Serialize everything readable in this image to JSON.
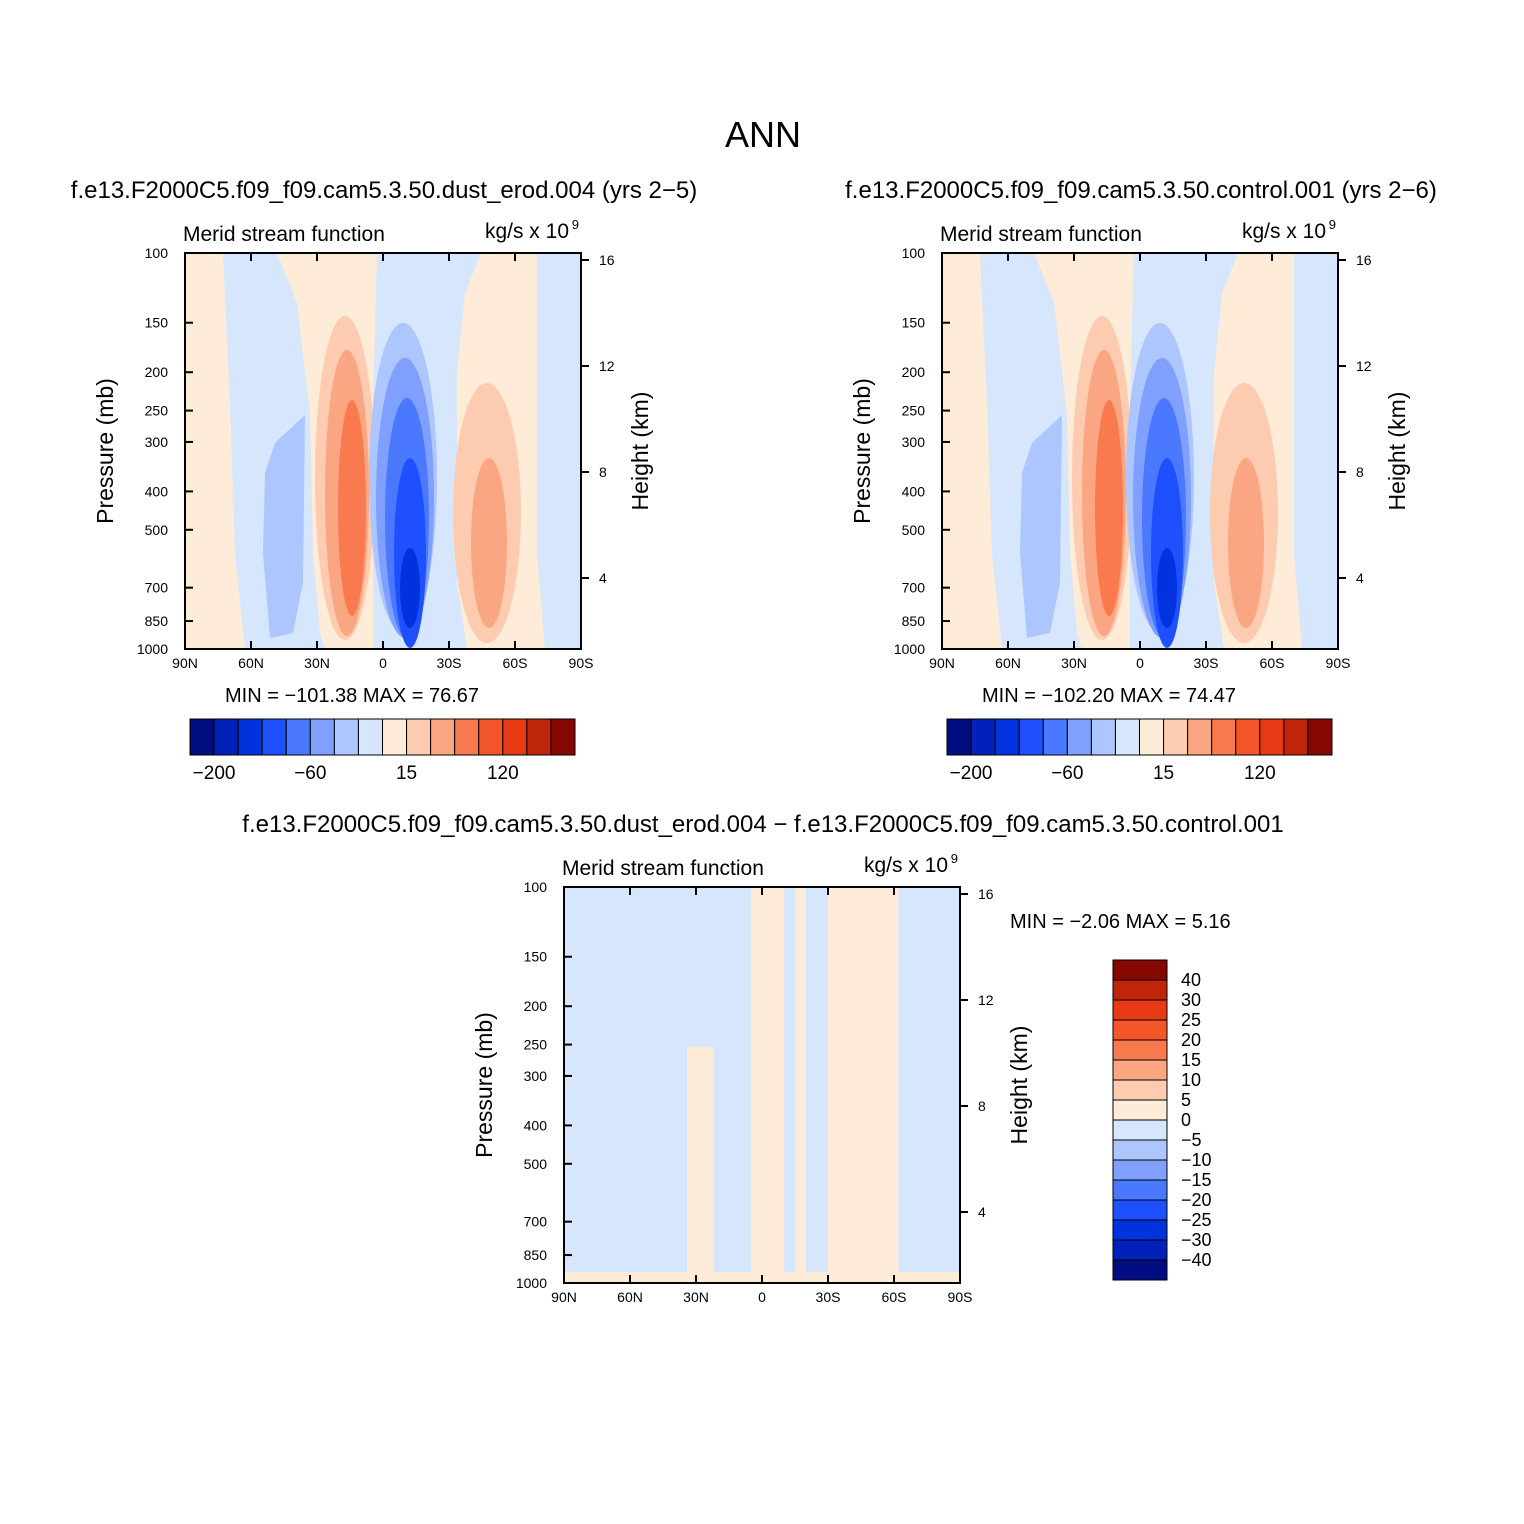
{
  "title": "ANN",
  "colors": {
    "neg": [
      "#000d80",
      "#0022bb",
      "#0033dd",
      "#1e50ff",
      "#4a78ff",
      "#7fa0ff",
      "#adc6ff",
      "#d6e6fd"
    ],
    "pos": [
      "#feebd8",
      "#fdccb0",
      "#fba682",
      "#f97a4f",
      "#f4562a",
      "#e63a14",
      "#c0250a",
      "#860800"
    ]
  },
  "chart_data": [
    {
      "type": "heatmap",
      "panel_title": "f.e13.F2000C5.f09_f09.cam5.3.50.dust_erod.004 (yrs 2−5)",
      "title_left": "Merid stream function",
      "title_right": "kg/s x 10",
      "title_right_sup": "9",
      "ylabel": "Pressure (mb)",
      "ylabel_right": "Height (km)",
      "x_ticks": [
        "90N",
        "60N",
        "30N",
        "0",
        "30S",
        "60S",
        "90S"
      ],
      "y_ticks": [
        "100",
        "150",
        "200",
        "250",
        "300",
        "400",
        "500",
        "700",
        "850",
        "1000"
      ],
      "right_ticks": [
        "16",
        "12",
        "8",
        "4"
      ],
      "stats": "MIN = −101.38   MAX =   76.67",
      "colorbar_labels": [
        "−200",
        "−60",
        "15",
        "120"
      ],
      "levels": [
        "-200",
        "-160",
        "-120",
        "-80",
        "-60",
        "-40",
        "-15",
        "0",
        "15",
        "40",
        "60",
        "80",
        "120",
        "160",
        "200"
      ],
      "cells": [
        {
          "lat": 60,
          "p": 600,
          "value": -20
        },
        {
          "lat": 15,
          "p": 500,
          "value": 65
        },
        {
          "lat": -12,
          "p": 650,
          "value": -101.38
        },
        {
          "lat": -48,
          "p": 500,
          "value": 45
        }
      ]
    },
    {
      "type": "heatmap",
      "panel_title": "f.e13.F2000C5.f09_f09.cam5.3.50.control.001 (yrs 2−6)",
      "title_left": "Merid stream function",
      "title_right": "kg/s x 10",
      "title_right_sup": "9",
      "ylabel": "Pressure (mb)",
      "ylabel_right": "Height (km)",
      "x_ticks": [
        "90N",
        "60N",
        "30N",
        "0",
        "30S",
        "60S",
        "90S"
      ],
      "y_ticks": [
        "100",
        "150",
        "200",
        "250",
        "300",
        "400",
        "500",
        "700",
        "850",
        "1000"
      ],
      "right_ticks": [
        "16",
        "12",
        "8",
        "4"
      ],
      "stats": "MIN = −102.20   MAX =   74.47",
      "colorbar_labels": [
        "−200",
        "−60",
        "15",
        "120"
      ],
      "levels": [
        "-200",
        "-160",
        "-120",
        "-80",
        "-60",
        "-40",
        "-15",
        "0",
        "15",
        "40",
        "60",
        "80",
        "120",
        "160",
        "200"
      ],
      "cells": [
        {
          "lat": 60,
          "p": 600,
          "value": -20
        },
        {
          "lat": 15,
          "p": 500,
          "value": 65
        },
        {
          "lat": -12,
          "p": 650,
          "value": -102.2
        },
        {
          "lat": -48,
          "p": 500,
          "value": 45
        }
      ]
    },
    {
      "type": "heatmap",
      "panel_title": "f.e13.F2000C5.f09_f09.cam5.3.50.dust_erod.004 − f.e13.F2000C5.f09_f09.cam5.3.50.control.001",
      "title_left": "Merid stream function",
      "title_right": "kg/s x 10",
      "title_right_sup": "9",
      "ylabel": "Pressure (mb)",
      "ylabel_right": "Height (km)",
      "x_ticks": [
        "90N",
        "60N",
        "30N",
        "0",
        "30S",
        "60S",
        "90S"
      ],
      "y_ticks": [
        "100",
        "150",
        "200",
        "250",
        "300",
        "400",
        "500",
        "700",
        "850",
        "1000"
      ],
      "right_ticks": [
        "16",
        "12",
        "8",
        "4"
      ],
      "stats": "MIN =    −2.06   MAX =    5.16",
      "colorbar_labels": [
        "40",
        "30",
        "25",
        "20",
        "15",
        "10",
        "5",
        "0",
        "−5",
        "−10",
        "−15",
        "−20",
        "−25",
        "−30",
        "−40"
      ],
      "cells": [
        {
          "lat": 70,
          "p": 500,
          "value": -1
        },
        {
          "lat": 50,
          "p": 500,
          "value": 1
        },
        {
          "lat": 35,
          "p": 500,
          "value": -1
        },
        {
          "lat": 0,
          "p": 500,
          "value": 1
        },
        {
          "lat": -65,
          "p": 500,
          "value": -1
        }
      ]
    }
  ]
}
